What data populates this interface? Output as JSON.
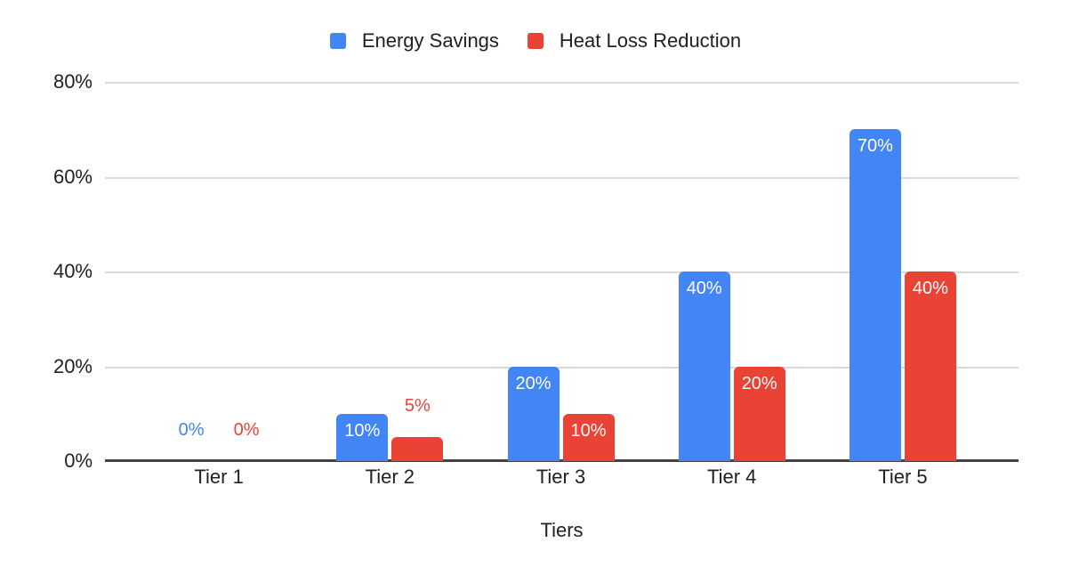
{
  "chart_data": {
    "type": "bar",
    "categories": [
      "Tier 1",
      "Tier 2",
      "Tier 3",
      "Tier 4",
      "Tier 5"
    ],
    "series": [
      {
        "name": "Energy Savings",
        "color": "#4285F4",
        "values": [
          0,
          10,
          20,
          40,
          70
        ],
        "labels": [
          "0%",
          "10%",
          "20%",
          "40%",
          "70%"
        ]
      },
      {
        "name": "Heat Loss Reduction",
        "color": "#EA4335",
        "values": [
          0,
          5,
          10,
          20,
          40
        ],
        "labels": [
          "0%",
          "5%",
          "10%",
          "20%",
          "40%"
        ]
      }
    ],
    "title": "",
    "xlabel": "Tiers",
    "ylabel": "",
    "ylim": [
      0,
      80
    ],
    "y_ticks": [
      "80%",
      "60%",
      "40%",
      "20%",
      "0%"
    ],
    "grid": true,
    "legend_position": "top",
    "inside_label_min_value": 10,
    "colors": {
      "gridline": "#d9d9d9",
      "axis_line": "#424242",
      "text": "#202124",
      "inside_label_text": "#ffffff",
      "background": "#ffffff"
    }
  }
}
